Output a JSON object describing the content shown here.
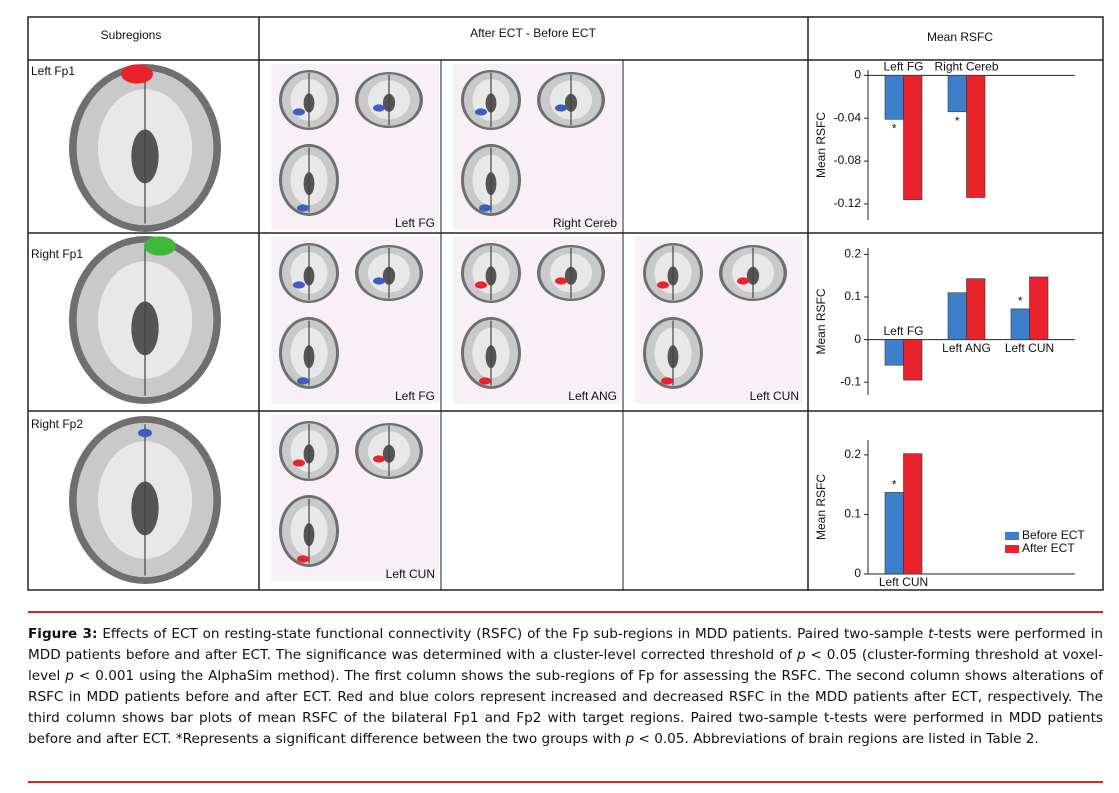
{
  "table": {
    "headers": [
      "Subregions",
      "After ECT - Before ECT",
      "Mean RSFC"
    ],
    "rows": [
      {
        "subregion": "Left Fp1",
        "regions": [
          "Left FG",
          "Right Cereb"
        ]
      },
      {
        "subregion": "Right Fp1",
        "regions": [
          "Left FG",
          "Left ANG",
          "Left CUN"
        ]
      },
      {
        "subregion": "Right Fp2",
        "regions": [
          "Left CUN"
        ]
      }
    ]
  },
  "chart_data": [
    {
      "type": "bar",
      "y_label": "Mean RSFC",
      "categories": [
        "Left FG",
        "Right Cereb"
      ],
      "series": [
        {
          "color": "#3e7fcb",
          "values": [
            -0.041,
            -0.034
          ],
          "stars": [
            "*",
            "*"
          ]
        },
        {
          "color": "#e8232b",
          "values": [
            -0.116,
            -0.114
          ]
        }
      ],
      "ylim": [
        -0.135,
        0.005
      ],
      "yticks": [
        0,
        -0.04,
        -0.08,
        -0.12
      ]
    },
    {
      "type": "bar",
      "y_label": "Mean RSFC",
      "categories": [
        "Left FG",
        "Left ANG",
        "Left CUN"
      ],
      "series": [
        {
          "color": "#3e7fcb",
          "values": [
            -0.06,
            0.11,
            0.072
          ],
          "stars": [
            null,
            null,
            "*"
          ]
        },
        {
          "color": "#e8232b",
          "values": [
            -0.095,
            0.143,
            0.147
          ]
        }
      ],
      "ylim": [
        -0.13,
        0.215
      ],
      "yticks": [
        0.2,
        0.1,
        0,
        -0.1
      ]
    },
    {
      "type": "bar",
      "y_label": "Mean RSFC",
      "categories": [
        "Left CUN"
      ],
      "series": [
        {
          "name": "Before ECT",
          "color": "#3e7fcb",
          "values": [
            0.137
          ],
          "stars": [
            "*"
          ]
        },
        {
          "name": "After ECT",
          "color": "#e8232b",
          "values": [
            0.202
          ]
        }
      ],
      "ylim": [
        0,
        0.225
      ],
      "yticks": [
        0.2,
        0.1,
        0
      ],
      "legend": "lower right"
    }
  ],
  "caption": {
    "label": "Figure 3:",
    "parts": [
      " Effects of ECT on resting-state functional connectivity (RSFC) of the Fp sub-regions in MDD patients. Paired two-sample ",
      "t",
      "-tests were performed in MDD patients before and after ECT. The significance was determined with a cluster-level corrected threshold of ",
      "p",
      " < 0.05 (cluster-forming threshold at voxel-level ",
      "p",
      " < 0.001 using the AlphaSim method). The first column shows the sub-regions of Fp for assessing the RSFC. The second column shows alterations of RSFC in MDD patients before and after ECT. Red and blue colors represent increased and decreased RSFC in the MDD patients after ECT, respectively. The third column shows bar plots of mean RSFC of the bilateral Fp1 and Fp2 with target regions. Paired two-sample t-tests were performed in MDD patients before and after ECT. *Represents a significant difference between the two groups with ",
      "p",
      " < 0.05. Abbreviations of brain regions are listed in Table 2."
    ]
  }
}
